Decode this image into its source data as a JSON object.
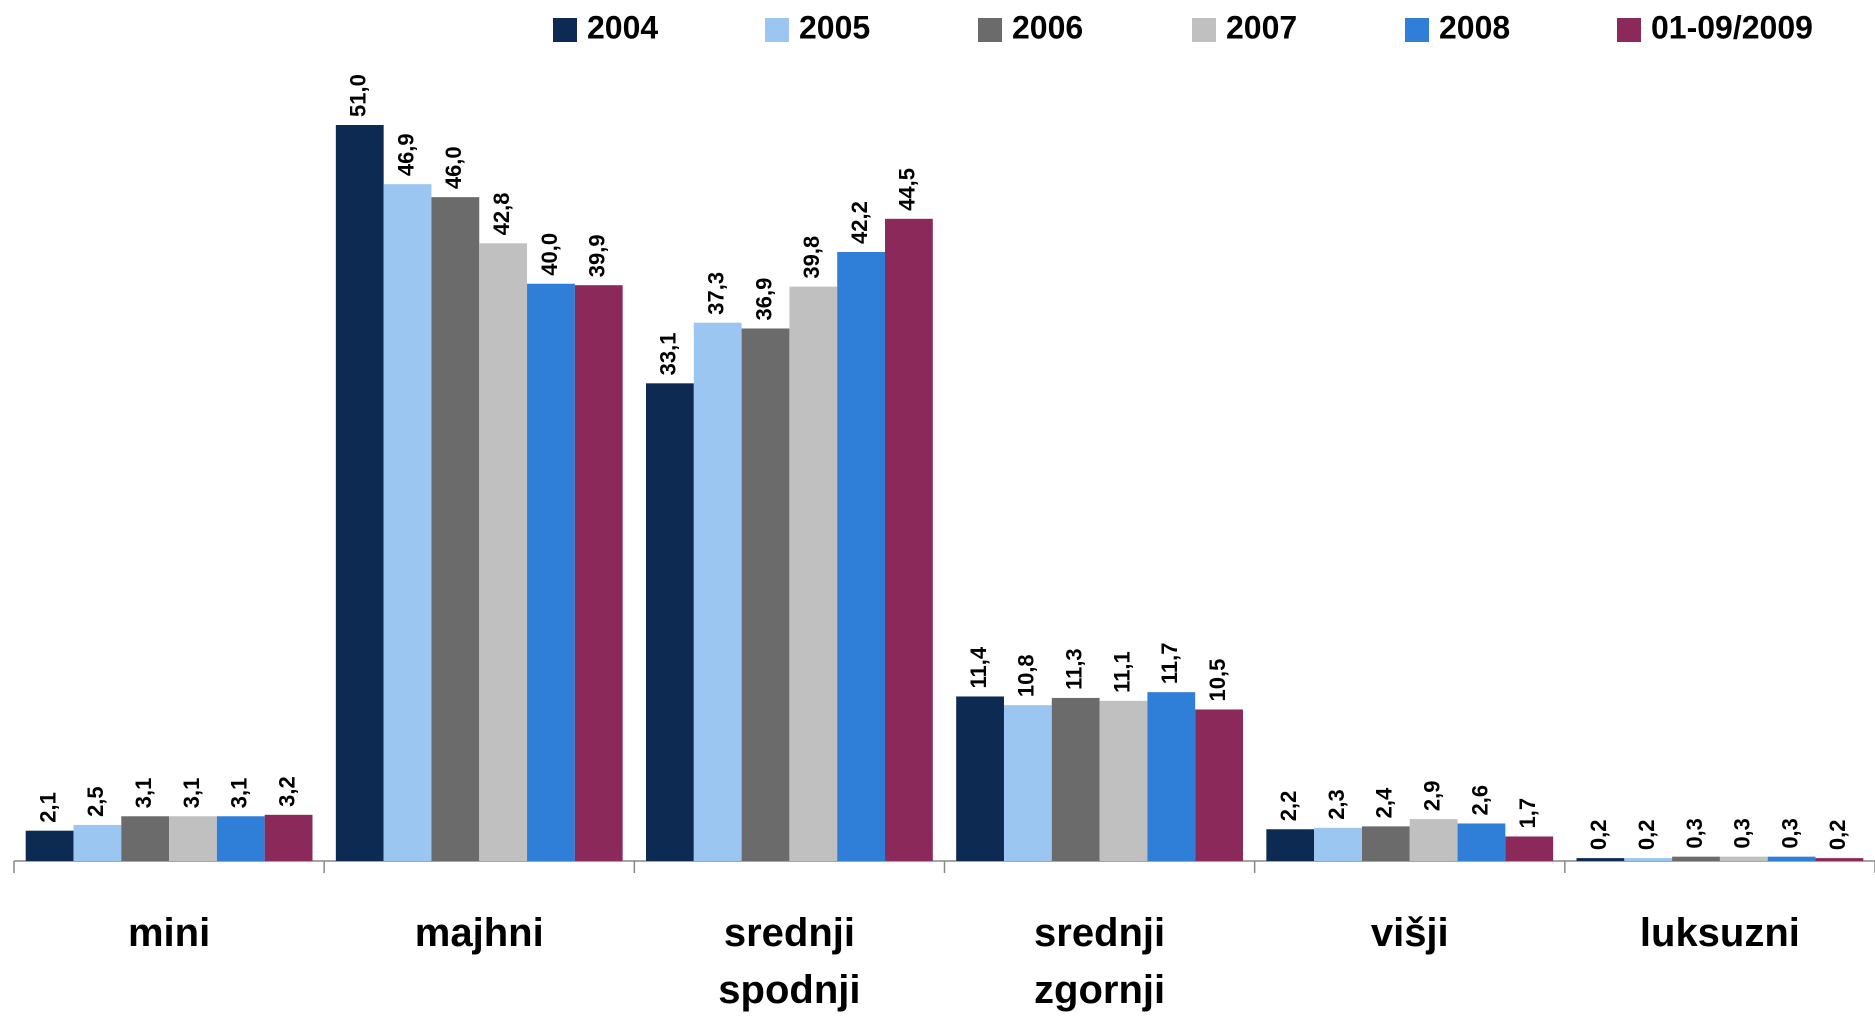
{
  "chart_data": {
    "type": "bar",
    "categories": [
      "mini",
      "majhni",
      "srednji spodnji",
      "srednji zgornji",
      "višji",
      "luksuzni"
    ],
    "series": [
      {
        "name": "2004",
        "color": "#0d2a52",
        "values": [
          2.1,
          51.0,
          33.1,
          11.4,
          2.2,
          0.2
        ],
        "value_labels": [
          "2,1",
          "51,0",
          "33,1",
          "11,4",
          "2,2",
          "0,2"
        ]
      },
      {
        "name": "2005",
        "color": "#9cc6f2",
        "values": [
          2.5,
          46.9,
          37.3,
          10.8,
          2.3,
          0.2
        ],
        "value_labels": [
          "2,5",
          "46,9",
          "37,3",
          "10,8",
          "2,3",
          "0,2"
        ]
      },
      {
        "name": "2006",
        "color": "#6b6b6b",
        "values": [
          3.1,
          46.0,
          36.9,
          11.3,
          2.4,
          0.3
        ],
        "value_labels": [
          "3,1",
          "46,0",
          "36,9",
          "11,3",
          "2,4",
          "0,3"
        ]
      },
      {
        "name": "2007",
        "color": "#c0c0c0",
        "values": [
          3.1,
          42.8,
          39.8,
          11.1,
          2.9,
          0.3
        ],
        "value_labels": [
          "3,1",
          "42,8",
          "39,8",
          "11,1",
          "2,9",
          "0,3"
        ]
      },
      {
        "name": "2008",
        "color": "#2f7fd8",
        "values": [
          3.1,
          40.0,
          42.2,
          11.7,
          2.6,
          0.3
        ],
        "value_labels": [
          "3,1",
          "40,0",
          "42,2",
          "11,7",
          "2,6",
          "0,3"
        ]
      },
      {
        "name": "01-09/2009",
        "color": "#8b2a5a",
        "values": [
          3.2,
          39.9,
          44.5,
          10.5,
          1.7,
          0.2
        ],
        "value_labels": [
          "3,2",
          "39,9",
          "44,5",
          "10,5",
          "1,7",
          "0,2"
        ]
      }
    ]
  }
}
